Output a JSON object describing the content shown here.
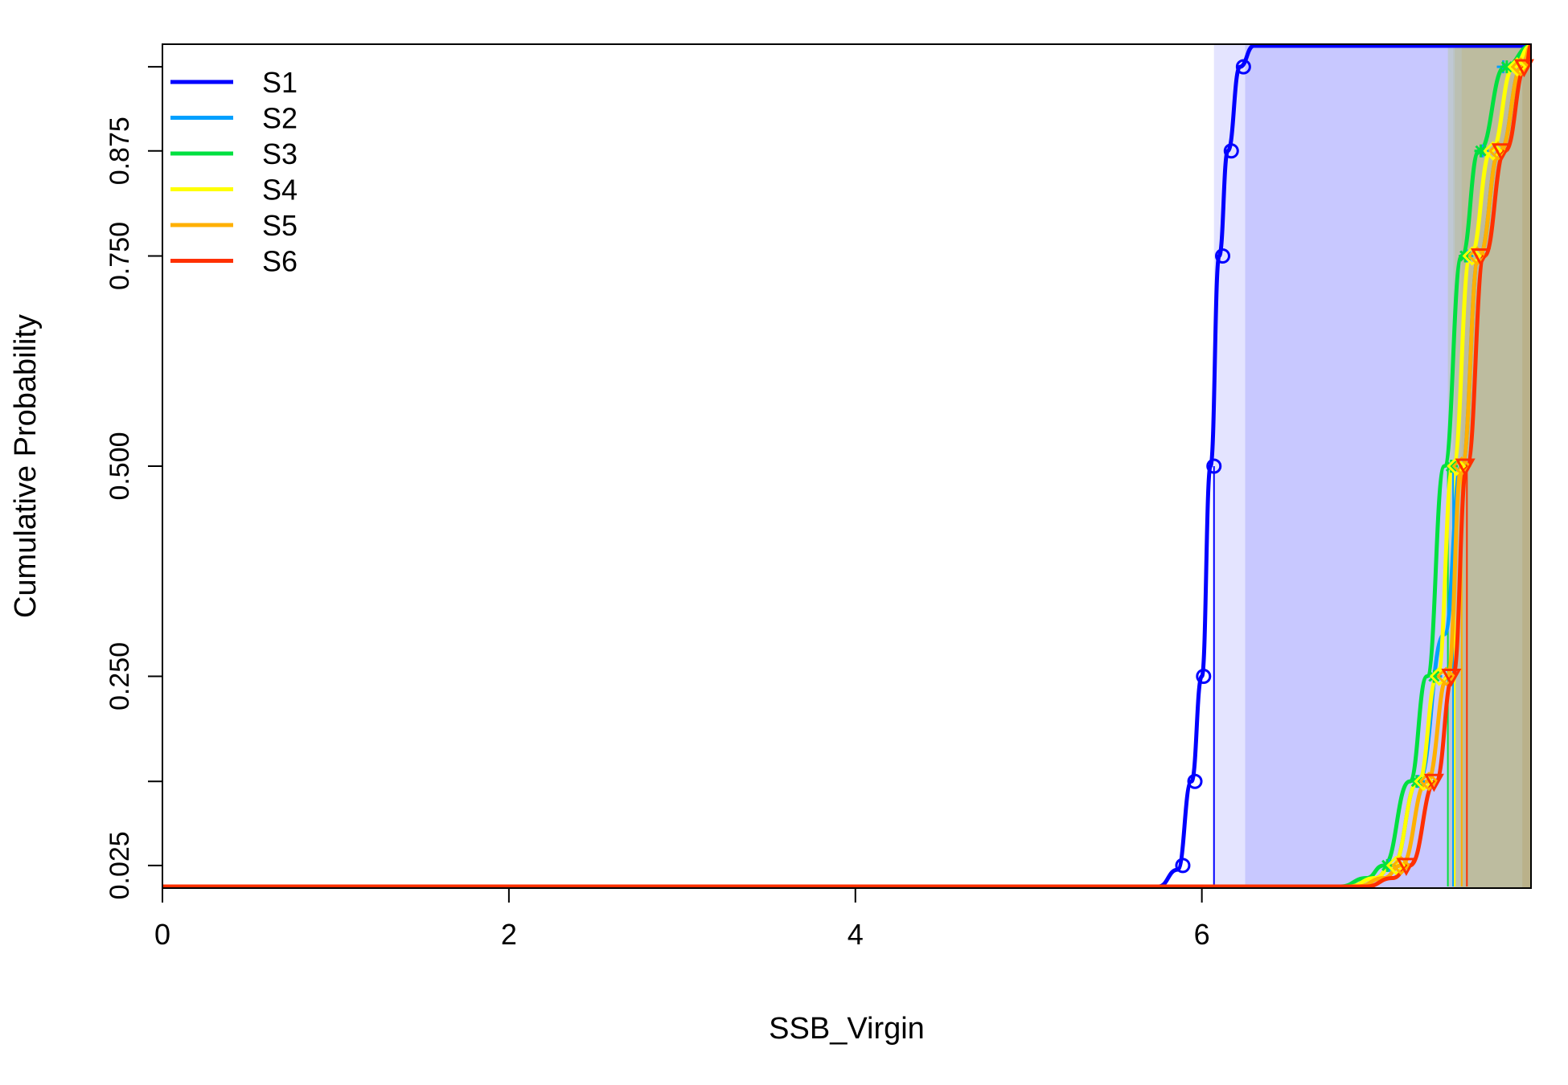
{
  "chart_data": {
    "type": "line",
    "title": "",
    "xlabel": "SSB_Virgin",
    "ylabel": "Cumulative Probability",
    "xlim": [
      0,
      7.9
    ],
    "ylim": [
      0,
      1
    ],
    "x_ticks": [
      0,
      2,
      4,
      6
    ],
    "y_ticks": [
      0.025,
      0.25,
      0.5,
      0.75,
      0.875
    ],
    "y_tick_labels": [
      "0.025",
      "0.250",
      "0.500",
      "0.750",
      "0.875"
    ],
    "legend_position": "top-left",
    "grid": false,
    "series": [
      {
        "name": "S1",
        "color": "#0000ff",
        "marker": "circle",
        "x": [
          0,
          5.75,
          5.86,
          5.94,
          6.0,
          6.05,
          6.1,
          6.15,
          6.22,
          6.3,
          7.9
        ],
        "y": [
          0,
          0,
          0.02,
          0.125,
          0.25,
          0.5,
          0.75,
          0.875,
          0.975,
          1.0,
          1.0
        ],
        "marker_x": [
          5.89,
          5.96,
          6.01,
          6.07,
          6.12,
          6.17,
          6.24
        ],
        "marker_y": [
          0.025,
          0.125,
          0.25,
          0.5,
          0.75,
          0.875,
          0.975
        ],
        "median": 6.07,
        "shade_start": 6.25,
        "shade_color": "#c8c8ff"
      },
      {
        "name": "S2",
        "color": "#00a0ff",
        "marker": "cross",
        "x": [
          0,
          6.85,
          7.0,
          7.1,
          7.25,
          7.4,
          7.5,
          7.6,
          7.72,
          7.85,
          7.9
        ],
        "y": [
          0,
          0,
          0.01,
          0.025,
          0.125,
          0.3,
          0.5,
          0.75,
          0.875,
          0.975,
          1.0
        ],
        "marker_x": [
          7.08,
          7.25,
          7.35,
          7.44,
          7.53,
          7.62,
          7.74
        ],
        "marker_y": [
          0.025,
          0.125,
          0.25,
          0.5,
          0.75,
          0.875,
          0.975
        ],
        "median": 7.45,
        "shade_start": 7.45,
        "shade_color": "#b8bccc"
      },
      {
        "name": "S3",
        "color": "#00e040",
        "marker": "star",
        "x": [
          0,
          6.8,
          6.95,
          7.05,
          7.2,
          7.3,
          7.4,
          7.5,
          7.6,
          7.75,
          7.9
        ],
        "y": [
          0,
          0,
          0.01,
          0.025,
          0.125,
          0.25,
          0.5,
          0.75,
          0.875,
          0.975,
          1.0
        ],
        "marker_x": [
          7.07,
          7.24,
          7.34,
          7.44,
          7.52,
          7.61,
          7.76
        ],
        "marker_y": [
          0.025,
          0.125,
          0.25,
          0.5,
          0.75,
          0.875,
          0.975
        ],
        "median": 7.42,
        "shade_start": 7.42,
        "shade_color": "#b8c8b0"
      },
      {
        "name": "S4",
        "color": "#ffff00",
        "marker": "diamond",
        "x": [
          0,
          6.85,
          7.0,
          7.1,
          7.25,
          7.36,
          7.45,
          7.55,
          7.67,
          7.8,
          7.9
        ],
        "y": [
          0,
          0,
          0.01,
          0.025,
          0.125,
          0.25,
          0.5,
          0.75,
          0.875,
          0.975,
          1.0
        ],
        "marker_x": [
          7.12,
          7.28,
          7.37,
          7.47,
          7.56,
          7.68,
          7.82
        ],
        "marker_y": [
          0.025,
          0.125,
          0.25,
          0.5,
          0.75,
          0.875,
          0.975
        ],
        "median": 7.46,
        "shade_start": 7.46,
        "shade_color": "#bcbca0"
      },
      {
        "name": "S5",
        "color": "#ffb000",
        "marker": "diamond",
        "x": [
          0,
          6.9,
          7.05,
          7.15,
          7.3,
          7.42,
          7.5,
          7.6,
          7.72,
          7.85,
          7.9
        ],
        "y": [
          0,
          0,
          0.01,
          0.025,
          0.125,
          0.25,
          0.5,
          0.75,
          0.875,
          0.975,
          1.0
        ],
        "marker_x": [
          7.15,
          7.31,
          7.41,
          7.5,
          7.59,
          7.71,
          7.84
        ],
        "marker_y": [
          0.025,
          0.125,
          0.25,
          0.5,
          0.75,
          0.875,
          0.975
        ],
        "median": 7.5,
        "shade_start": 7.5,
        "shade_color": "#c0b890"
      },
      {
        "name": "S6",
        "color": "#ff3000",
        "marker": "triangle-down",
        "x": [
          0,
          6.95,
          7.1,
          7.2,
          7.35,
          7.45,
          7.53,
          7.63,
          7.75,
          7.87,
          7.9
        ],
        "y": [
          0,
          0,
          0.01,
          0.025,
          0.125,
          0.25,
          0.5,
          0.75,
          0.875,
          0.975,
          1.0
        ],
        "marker_x": [
          7.18,
          7.34,
          7.44,
          7.52,
          7.61,
          7.73,
          7.86
        ],
        "marker_y": [
          0.025,
          0.125,
          0.25,
          0.5,
          0.75,
          0.875,
          0.975
        ],
        "median": 7.53,
        "shade_start": 7.85,
        "shade_color": "#b8a878"
      }
    ]
  }
}
